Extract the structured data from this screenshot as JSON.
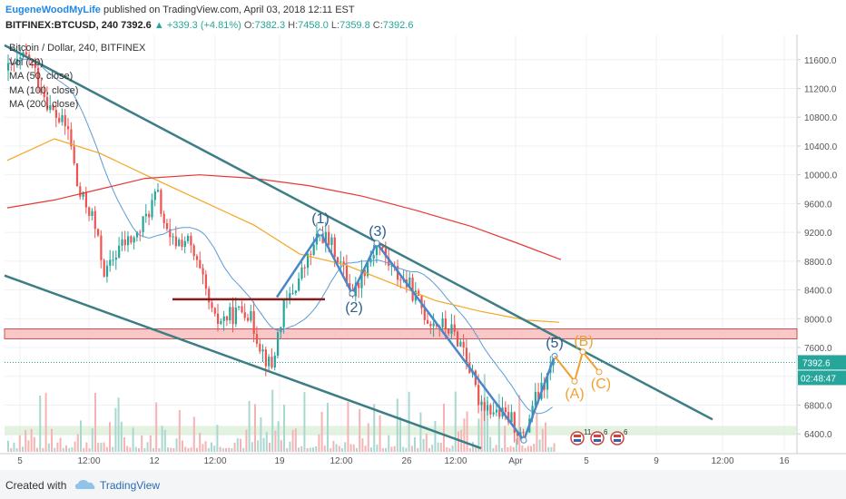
{
  "header": {
    "author": "EugeneWoodMyLife",
    "published": "published on TradingView.com, April 03, 2018 12:11 EST",
    "symbol": "BITFINEX:BTCUSD, 240",
    "last": "7392.6",
    "arrow": "▲",
    "change": "+339.3 (+4.81%)",
    "o_label": "O:",
    "o_value": "7382.3",
    "h_label": "H:",
    "h_value": "7458.0",
    "l_label": "L:",
    "l_value": "7359.8",
    "c_label": "C:",
    "c_value": "7392.6"
  },
  "legend": {
    "title": "Bitcoin / Dollar, 240, BITFINEX",
    "vol": "Vol (20)",
    "ma50": "MA (50, close)",
    "ma100": "MA (100, close)",
    "ma200": "MA (200, close)"
  },
  "footer": {
    "created": "Created with",
    "brand": "TradingView"
  },
  "colors": {
    "up": "#26a69a",
    "down": "#ef5350",
    "trendline": "#3c7d86",
    "elliott": "#4a86c8",
    "projection": "#f0a030",
    "ma50": "#5b9bd5",
    "ma100": "#f5a623",
    "ma200": "#e53935",
    "support": "#8b1a1a",
    "resistance_zone": "#f8c8c8",
    "volume_zone": "#d9ecd5"
  },
  "chart_data": {
    "type": "candlestick",
    "ylim": [
      6150,
      11950
    ],
    "y_ticks": [
      6400,
      6800,
      7200,
      7600,
      8000,
      8400,
      8800,
      9200,
      9600,
      10000,
      10400,
      10800,
      11200,
      11600
    ],
    "y_tick_labels": [
      "6400.0",
      "6800.0",
      "7200.0",
      "7600.0",
      "8000.0",
      "8400.0",
      "8800.0",
      "9200.0",
      "9600.0",
      "10000.0",
      "10400.0",
      "10800.0",
      "11200.0",
      "11600.0"
    ],
    "x_tick_labels": [
      "5",
      "12:00",
      "12",
      "12:00",
      "19",
      "12:00",
      "26",
      "12:00",
      "Apr",
      "5",
      "9",
      "12:00",
      "16"
    ],
    "last_price": 7392.6,
    "last_price_label": "7392.6",
    "countdown_label": "02:48:47",
    "wave_labels": [
      "(1)",
      "(2)",
      "(3)",
      "(5)",
      "(A)",
      "(B)",
      "(C)"
    ],
    "waves": [
      {
        "label": "(1)",
        "price": 9200
      },
      {
        "label": "(2)",
        "price": 8350
      },
      {
        "label": "(3)",
        "price": 9050
      },
      {
        "label": "(5)",
        "price": 7480
      },
      {
        "label": "(A)",
        "price": 7130
      },
      {
        "label": "(B)",
        "price": 7540
      },
      {
        "label": "(C)",
        "price": 7260
      }
    ],
    "wave_low": 6310,
    "support_level": 8270,
    "resistance_zone": [
      7720,
      7860
    ],
    "event_markers": [
      "11",
      "6",
      "6"
    ]
  }
}
